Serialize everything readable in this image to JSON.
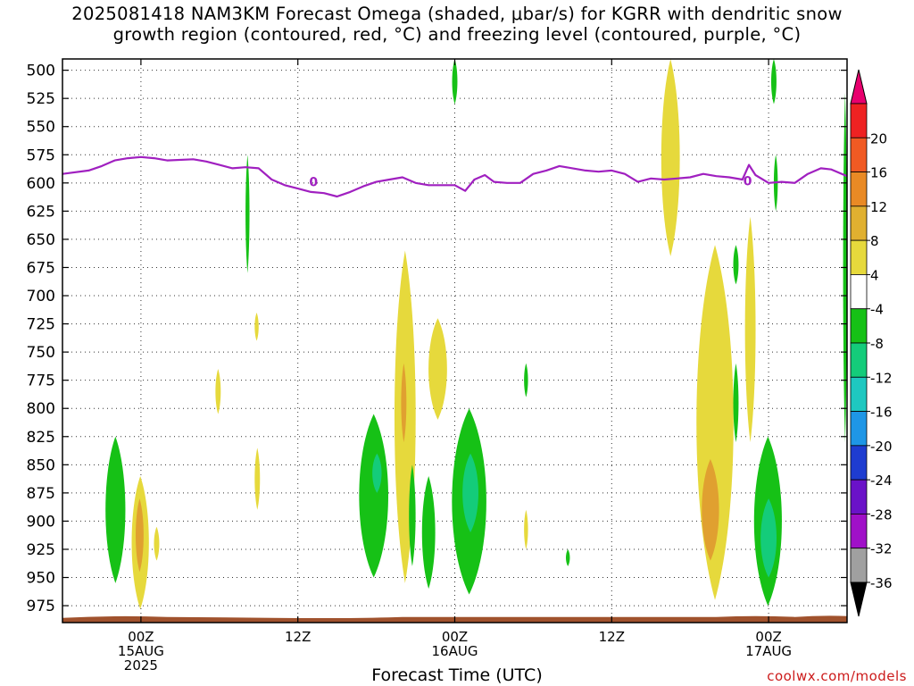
{
  "title": {
    "line1": "2025081418 NAM3KM Forecast Omega (shaded, μbar/s) for KGRR with dendritic snow",
    "line2": "growth region (contoured, red, °C) and freezing level (contoured, purple, °C)"
  },
  "credit": "coolwx.com/models",
  "chart_data": {
    "type": "time-height cross section",
    "title": "2025081418 NAM3KM Forecast Omega (shaded, μbar/s) for KGRR with dendritic snow growth region (contoured, red, °C) and freezing level (contoured, purple, °C)",
    "xlabel": "Forecast Time (UTC)",
    "ylabel": "",
    "x_unit": "hours since 2025-08-14 18Z",
    "xlim": [
      0,
      60
    ],
    "y_unit": "hPa",
    "ylim": [
      990,
      490
    ],
    "y_inverted": true,
    "grid": true,
    "y_ticks": [
      500,
      525,
      550,
      575,
      600,
      625,
      650,
      675,
      700,
      725,
      750,
      775,
      800,
      825,
      850,
      875,
      900,
      925,
      950,
      975
    ],
    "x_ticks": [
      {
        "t": 6,
        "lines": [
          "00Z",
          "15AUG",
          "2025"
        ]
      },
      {
        "t": 18,
        "lines": [
          "12Z"
        ]
      },
      {
        "t": 30,
        "lines": [
          "00Z",
          "16AUG"
        ]
      },
      {
        "t": 42,
        "lines": [
          "12Z"
        ]
      },
      {
        "t": 54,
        "lines": [
          "00Z",
          "17AUG"
        ]
      }
    ],
    "colorbar": {
      "unit": "μbar/s",
      "labels": [
        "20",
        "16",
        "12",
        "8",
        "4",
        "-4",
        "-8",
        "-12",
        "-16",
        "-20",
        "-24",
        "-28",
        "-32",
        "-36"
      ],
      "colors": [
        "#e8006e",
        "#ee2222",
        "#f05a23",
        "#e98a25",
        "#e0b030",
        "#e6d93c",
        "#ffffff",
        "#16c116",
        "#14cc7a",
        "#1ec8c0",
        "#1e96e6",
        "#1e3cd0",
        "#6a12c8",
        "#a010c8",
        "#a0a0a0",
        "#000000"
      ]
    },
    "freezing_level": {
      "label": "0",
      "color": "#a020c0",
      "t": [
        0,
        2,
        3,
        4,
        5,
        6,
        7,
        8,
        10,
        11,
        12,
        13,
        14,
        15,
        16,
        17,
        18,
        19,
        20,
        21,
        22,
        23,
        24,
        25,
        26,
        27,
        28,
        29,
        30,
        30.8,
        31.5,
        32.3,
        33,
        34,
        35,
        36,
        37,
        38,
        39,
        40,
        41,
        42,
        43,
        44,
        45,
        46,
        47,
        48,
        49,
        50,
        51,
        52,
        52.5,
        53,
        54,
        55,
        56,
        57,
        58,
        58.8,
        60
      ],
      "p": [
        592,
        589,
        585,
        580,
        578,
        577,
        578,
        580,
        579,
        581,
        584,
        587,
        586,
        587,
        597,
        602,
        605,
        608,
        609,
        612,
        608,
        603,
        599,
        597,
        595,
        600,
        602,
        602,
        602,
        607,
        597,
        593,
        599,
        600,
        600,
        592,
        589,
        585,
        587,
        589,
        590,
        589,
        592,
        599,
        596,
        597,
        596,
        595,
        592,
        594,
        595,
        597,
        584,
        593,
        600,
        599,
        600,
        592,
        587,
        588,
        594
      ]
    },
    "surface_band": {
      "p": 985,
      "color": "#a0522d"
    },
    "omega_regions": [
      {
        "color": "#16c116",
        "t": [
          3.3,
          4.8
        ],
        "p": [
          825,
          955
        ]
      },
      {
        "color": "#e6d93c",
        "t": [
          5.3,
          6.6
        ],
        "p": [
          860,
          978
        ]
      },
      {
        "color": "#e0a030",
        "t": [
          5.6,
          6.2
        ],
        "p": [
          880,
          945
        ]
      },
      {
        "color": "#e6d93c",
        "t": [
          7.0,
          7.4
        ],
        "p": [
          905,
          935
        ]
      },
      {
        "color": "#e6d93c",
        "t": [
          11.7,
          12.1
        ],
        "p": [
          765,
          805
        ]
      },
      {
        "color": "#16c116",
        "t": [
          14.0,
          14.3
        ],
        "p": [
          575,
          680
        ]
      },
      {
        "color": "#e6d93c",
        "t": [
          14.7,
          15.0
        ],
        "p": [
          715,
          740
        ]
      },
      {
        "color": "#e6d93c",
        "t": [
          14.7,
          15.1
        ],
        "p": [
          835,
          890
        ]
      },
      {
        "color": "#16c116",
        "t": [
          22.7,
          24.9
        ],
        "p": [
          805,
          950
        ]
      },
      {
        "color": "#14cc7a",
        "t": [
          23.7,
          24.4
        ],
        "p": [
          840,
          875
        ]
      },
      {
        "color": "#e6d93c",
        "t": [
          25.4,
          27.0
        ],
        "p": [
          660,
          955
        ]
      },
      {
        "color": "#e0a030",
        "t": [
          25.9,
          26.3
        ],
        "p": [
          760,
          830
        ]
      },
      {
        "color": "#16c116",
        "t": [
          26.5,
          27.0
        ],
        "p": [
          850,
          940
        ]
      },
      {
        "color": "#e6d93c",
        "t": [
          28.0,
          29.4
        ],
        "p": [
          720,
          810
        ]
      },
      {
        "color": "#16c116",
        "t": [
          27.5,
          28.5
        ],
        "p": [
          860,
          960
        ]
      },
      {
        "color": "#16c116",
        "t": [
          29.8,
          32.4
        ],
        "p": [
          800,
          965
        ]
      },
      {
        "color": "#14cc7a",
        "t": [
          30.6,
          31.8
        ],
        "p": [
          840,
          910
        ]
      },
      {
        "color": "#16c116",
        "t": [
          29.8,
          30.2
        ],
        "p": [
          490,
          530
        ]
      },
      {
        "color": "#16c116",
        "t": [
          35.3,
          35.6
        ],
        "p": [
          760,
          790
        ]
      },
      {
        "color": "#e6d93c",
        "t": [
          35.3,
          35.6
        ],
        "p": [
          890,
          925
        ]
      },
      {
        "color": "#16c116",
        "t": [
          38.5,
          38.8
        ],
        "p": [
          925,
          940
        ]
      },
      {
        "color": "#e6d93c",
        "t": [
          45.8,
          47.2
        ],
        "p": [
          490,
          665
        ]
      },
      {
        "color": "#e6d93c",
        "t": [
          48.5,
          51.3
        ],
        "p": [
          655,
          970
        ]
      },
      {
        "color": "#e0a030",
        "t": [
          48.9,
          50.2
        ],
        "p": [
          845,
          935
        ]
      },
      {
        "color": "#16c116",
        "t": [
          51.3,
          51.7
        ],
        "p": [
          655,
          690
        ]
      },
      {
        "color": "#16c116",
        "t": [
          51.3,
          51.7
        ],
        "p": [
          760,
          830
        ]
      },
      {
        "color": "#e6d93c",
        "t": [
          52.2,
          53.0
        ],
        "p": [
          630,
          830
        ]
      },
      {
        "color": "#16c116",
        "t": [
          52.9,
          55.0
        ],
        "p": [
          825,
          975
        ]
      },
      {
        "color": "#14cc7a",
        "t": [
          53.4,
          54.6
        ],
        "p": [
          880,
          950
        ]
      },
      {
        "color": "#16c116",
        "t": [
          54.2,
          54.6
        ],
        "p": [
          490,
          530
        ]
      },
      {
        "color": "#16c116",
        "t": [
          54.4,
          54.7
        ],
        "p": [
          575,
          625
        ]
      },
      {
        "color": "#16c116",
        "t": [
          59.7,
          60.0
        ],
        "p": [
          520,
          830
        ]
      }
    ]
  }
}
